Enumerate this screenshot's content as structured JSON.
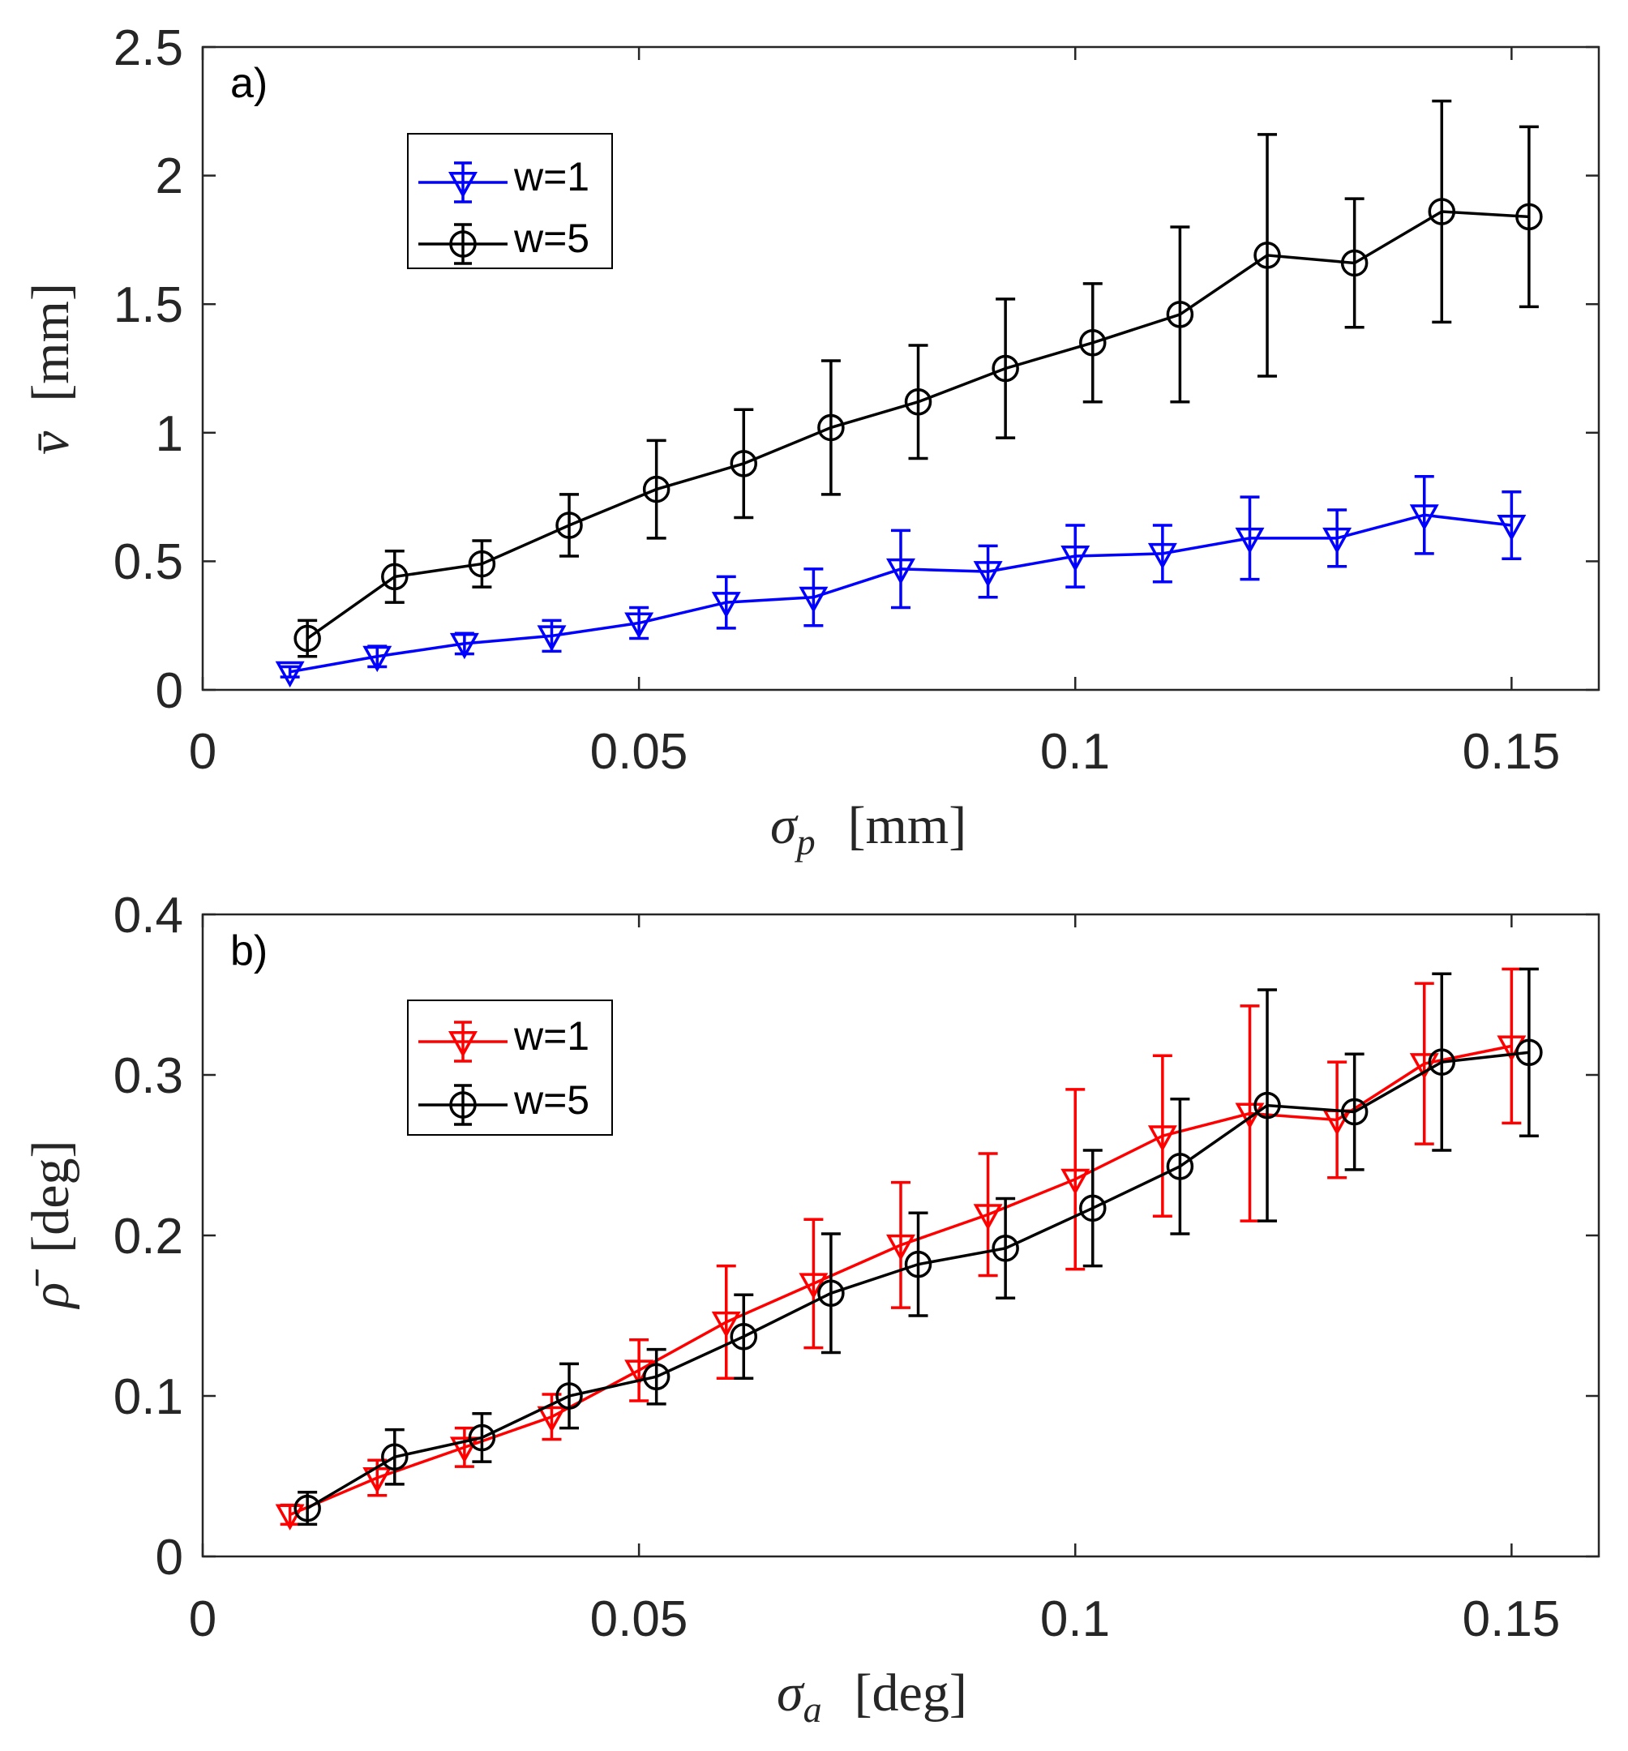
{
  "chart_data": [
    {
      "type": "line",
      "panel_label": "a)",
      "xlabel_main": "σ",
      "xlabel_sub": "p",
      "xlabel_unit": "[mm]",
      "ylabel_main": "v̄",
      "ylabel_unit": "[mm]",
      "xlim": [
        0,
        0.16
      ],
      "ylim": [
        0,
        2.5
      ],
      "xticks": [
        0,
        0.05,
        0.1,
        0.15
      ],
      "xtick_labels": [
        "0",
        "0.05",
        "0.1",
        "0.15"
      ],
      "yticks": [
        0,
        0.5,
        1,
        1.5,
        2,
        2.5
      ],
      "ytick_labels": [
        "0",
        "0.5",
        "1",
        "1.5",
        "2",
        "2.5"
      ],
      "legend_position": "top-left",
      "series": [
        {
          "name": "w=1",
          "color": "#0000ff",
          "marker": "triangle-down",
          "x": [
            0.01,
            0.02,
            0.03,
            0.04,
            0.05,
            0.06,
            0.07,
            0.08,
            0.09,
            0.1,
            0.11,
            0.12,
            0.13,
            0.14,
            0.15
          ],
          "y": [
            0.07,
            0.13,
            0.18,
            0.21,
            0.26,
            0.34,
            0.36,
            0.47,
            0.46,
            0.52,
            0.53,
            0.59,
            0.59,
            0.68,
            0.64
          ],
          "err": [
            0.02,
            0.04,
            0.04,
            0.06,
            0.06,
            0.1,
            0.11,
            0.15,
            0.1,
            0.12,
            0.11,
            0.16,
            0.11,
            0.15,
            0.13
          ]
        },
        {
          "name": "w=5",
          "color": "#000000",
          "marker": "circle",
          "x": [
            0.012,
            0.022,
            0.032,
            0.042,
            0.052,
            0.062,
            0.072,
            0.082,
            0.092,
            0.102,
            0.112,
            0.122,
            0.132,
            0.142,
            0.152
          ],
          "y": [
            0.2,
            0.44,
            0.49,
            0.64,
            0.78,
            0.88,
            1.02,
            1.12,
            1.25,
            1.35,
            1.46,
            1.69,
            1.66,
            1.86,
            1.84
          ],
          "err": [
            0.07,
            0.1,
            0.09,
            0.12,
            0.19,
            0.21,
            0.26,
            0.22,
            0.27,
            0.23,
            0.34,
            0.47,
            0.25,
            0.43,
            0.35
          ]
        }
      ]
    },
    {
      "type": "line",
      "panel_label": "b)",
      "xlabel_main": "σ",
      "xlabel_sub": "a",
      "xlabel_unit": "[deg]",
      "ylabel_main": "ρ̄",
      "ylabel_unit": "[deg]",
      "xlim": [
        0,
        0.16
      ],
      "ylim": [
        0,
        0.4
      ],
      "xticks": [
        0,
        0.05,
        0.1,
        0.15
      ],
      "xtick_labels": [
        "0",
        "0.05",
        "0.1",
        "0.15"
      ],
      "yticks": [
        0,
        0.1,
        0.2,
        0.3,
        0.4
      ],
      "ytick_labels": [
        "0",
        "0.1",
        "0.2",
        "0.3",
        "0.4"
      ],
      "legend_position": "top-left",
      "series": [
        {
          "name": "w=1",
          "color": "#ff0000",
          "marker": "triangle-down",
          "x": [
            0.01,
            0.02,
            0.03,
            0.04,
            0.05,
            0.06,
            0.07,
            0.08,
            0.09,
            0.1,
            0.11,
            0.12,
            0.13,
            0.14,
            0.15
          ],
          "y": [
            0.026,
            0.049,
            0.068,
            0.087,
            0.116,
            0.146,
            0.17,
            0.194,
            0.213,
            0.235,
            0.262,
            0.276,
            0.272,
            0.307,
            0.318
          ],
          "err": [
            0.006,
            0.011,
            0.012,
            0.014,
            0.019,
            0.035,
            0.04,
            0.039,
            0.038,
            0.056,
            0.05,
            0.067,
            0.036,
            0.05,
            0.048
          ]
        },
        {
          "name": "w=5",
          "color": "#000000",
          "marker": "circle",
          "x": [
            0.012,
            0.022,
            0.032,
            0.042,
            0.052,
            0.062,
            0.072,
            0.082,
            0.092,
            0.102,
            0.112,
            0.122,
            0.132,
            0.142,
            0.152
          ],
          "y": [
            0.03,
            0.062,
            0.074,
            0.1,
            0.112,
            0.137,
            0.164,
            0.182,
            0.192,
            0.217,
            0.243,
            0.281,
            0.277,
            0.308,
            0.314
          ],
          "err": [
            0.01,
            0.017,
            0.015,
            0.02,
            0.017,
            0.026,
            0.037,
            0.032,
            0.031,
            0.036,
            0.042,
            0.072,
            0.036,
            0.055,
            0.052
          ]
        }
      ]
    }
  ]
}
